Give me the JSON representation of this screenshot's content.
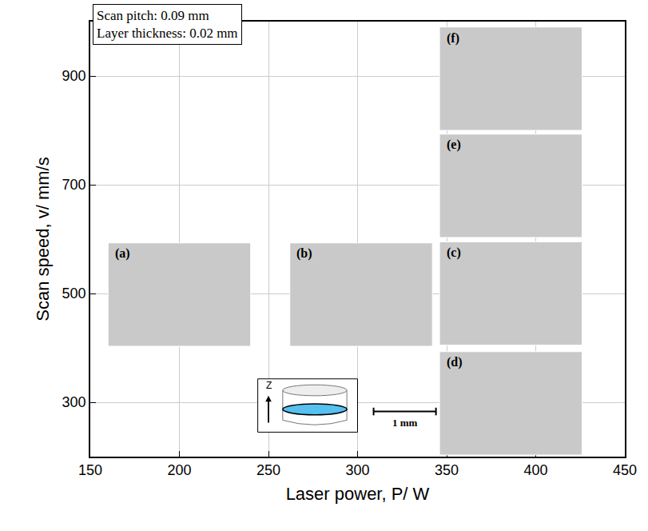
{
  "chart_data": {
    "type": "scatter",
    "xlabel": "Laser power, P/ W",
    "ylabel": "Scan speed, v/ mm/s",
    "xlim": [
      150,
      450
    ],
    "xticks": [
      150,
      200,
      250,
      300,
      350,
      400,
      450
    ],
    "ylim": [
      200,
      1000
    ],
    "yticks": [
      300,
      500,
      700,
      900
    ],
    "grid": true,
    "annotations": [
      "Scan pitch: 0.09 mm",
      "Layer thickness: 0.02 mm"
    ],
    "scale_bar": "1 mm",
    "inset_axis_label": "Z",
    "micrographs": [
      {
        "label": "(a)",
        "x": 200,
        "y": 498
      },
      {
        "label": "(b)",
        "x": 302,
        "y": 498
      },
      {
        "label": "(c)",
        "x": 386,
        "y": 500
      },
      {
        "label": "(d)",
        "x": 386,
        "y": 298
      },
      {
        "label": "(e)",
        "x": 386,
        "y": 698
      },
      {
        "label": "(f)",
        "x": 386,
        "y": 895
      }
    ]
  }
}
